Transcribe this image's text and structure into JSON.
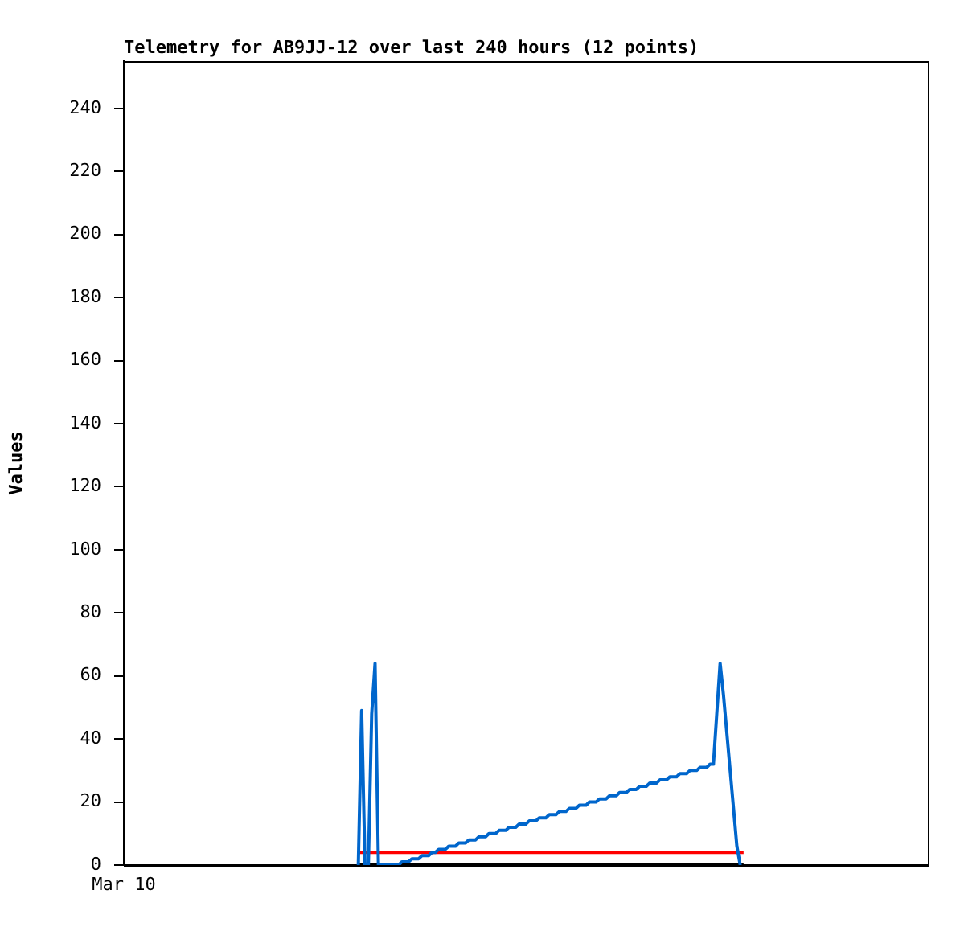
{
  "chart_data": {
    "type": "line",
    "title": "Telemetry for AB9JJ-12 over last 240 hours (12 points)",
    "ylabel": "Values",
    "categories": [
      "Mar 10",
      null,
      null,
      null,
      null,
      null,
      null,
      null,
      null,
      null,
      null,
      null,
      null,
      null,
      null,
      null,
      null,
      null,
      null,
      null,
      null,
      null,
      null,
      null,
      null,
      null,
      null,
      null,
      null,
      null,
      null,
      null,
      null,
      null,
      null,
      null,
      null,
      null,
      null,
      null,
      null,
      null,
      null,
      null,
      null,
      null,
      null,
      null,
      null,
      null,
      null,
      null,
      null,
      null,
      null,
      null,
      null,
      null,
      null,
      null,
      null,
      null,
      null,
      null,
      null,
      null,
      null,
      null,
      null,
      null,
      null,
      null,
      null,
      null,
      null,
      null,
      null,
      null,
      null,
      null,
      null,
      null,
      null,
      null,
      null,
      null,
      null,
      null,
      null,
      null,
      null,
      null,
      null,
      null,
      null,
      null,
      null,
      null,
      null,
      null,
      null,
      null,
      null,
      null,
      null,
      null,
      null,
      null,
      null,
      null,
      null,
      null,
      null,
      null,
      null,
      null,
      null,
      null,
      null,
      null,
      null,
      null,
      null,
      null,
      null,
      null,
      null,
      null,
      null,
      null,
      null,
      null,
      null,
      null,
      null,
      null,
      null,
      null,
      null,
      null,
      null,
      null,
      null,
      null,
      null,
      null,
      null,
      null,
      null,
      null,
      null,
      null,
      null,
      null,
      null,
      null,
      null,
      null,
      null,
      null,
      null,
      null,
      null,
      null,
      null,
      null,
      null,
      null,
      null,
      null,
      null,
      null,
      null,
      null,
      null,
      null,
      null,
      null,
      null,
      null,
      null,
      null,
      null,
      null,
      null,
      null,
      null,
      null,
      null,
      null,
      null,
      null,
      null,
      null,
      null,
      null,
      null,
      null,
      null,
      null,
      null,
      null,
      null,
      null,
      null,
      null,
      null,
      null,
      null,
      null,
      null,
      null,
      null,
      null,
      null,
      null,
      null,
      null,
      null,
      null,
      null,
      null,
      null,
      null,
      null,
      null,
      null,
      null,
      null,
      null,
      null,
      null,
      null,
      null,
      null,
      null,
      null,
      null,
      null,
      null,
      null
    ],
    "ylim": [
      0,
      255
    ],
    "yticks": [
      0,
      20,
      40,
      60,
      80,
      100,
      120,
      140,
      160,
      180,
      200,
      220,
      240
    ],
    "grid": false,
    "legend": false,
    "marker": "none",
    "line_style": "solid",
    "series": [
      {
        "color": "#0066cc",
        "values": [
          null,
          null,
          null,
          null,
          null,
          null,
          null,
          null,
          null,
          null,
          null,
          null,
          null,
          null,
          null,
          null,
          null,
          null,
          null,
          null,
          null,
          null,
          null,
          null,
          null,
          null,
          null,
          null,
          null,
          null,
          null,
          null,
          null,
          null,
          null,
          null,
          null,
          null,
          null,
          null,
          null,
          null,
          null,
          null,
          null,
          null,
          null,
          null,
          null,
          null,
          null,
          null,
          null,
          null,
          null,
          null,
          null,
          null,
          null,
          null,
          null,
          null,
          null,
          null,
          null,
          null,
          null,
          null,
          null,
          null,
          0,
          49,
          0,
          0,
          48,
          64,
          0,
          0,
          0,
          0,
          0,
          0,
          0,
          1,
          1,
          1,
          2,
          2,
          2,
          3,
          3,
          3,
          4,
          4,
          5,
          5,
          5,
          6,
          6,
          6,
          7,
          7,
          7,
          8,
          8,
          8,
          9,
          9,
          9,
          10,
          10,
          10,
          11,
          11,
          11,
          12,
          12,
          12,
          13,
          13,
          13,
          14,
          14,
          14,
          15,
          15,
          15,
          16,
          16,
          16,
          17,
          17,
          17,
          18,
          18,
          18,
          19,
          19,
          19,
          20,
          20,
          20,
          21,
          21,
          21,
          22,
          22,
          22,
          23,
          23,
          23,
          24,
          24,
          24,
          25,
          25,
          25,
          26,
          26,
          26,
          27,
          27,
          27,
          28,
          28,
          28,
          29,
          29,
          29,
          30,
          30,
          30,
          31,
          31,
          31,
          32,
          32,
          48,
          64,
          54,
          42,
          30,
          18,
          6,
          0,
          null,
          null,
          null,
          null,
          null,
          null,
          null,
          null,
          null,
          null,
          null,
          null,
          null,
          null,
          null,
          null,
          null,
          null,
          null,
          null,
          null,
          null,
          null,
          null,
          null,
          null,
          null,
          null,
          null,
          null,
          null,
          null,
          null,
          null,
          null,
          null,
          null,
          null,
          null,
          null,
          null,
          null,
          null,
          null,
          null,
          null,
          null,
          null,
          null,
          null,
          null,
          null,
          null,
          null,
          null,
          null
        ]
      },
      {
        "color": "#ff0000",
        "values": [
          null,
          null,
          null,
          null,
          null,
          null,
          null,
          null,
          null,
          null,
          null,
          null,
          null,
          null,
          null,
          null,
          null,
          null,
          null,
          null,
          null,
          null,
          null,
          null,
          null,
          null,
          null,
          null,
          null,
          null,
          null,
          null,
          null,
          null,
          null,
          null,
          null,
          null,
          null,
          null,
          null,
          null,
          null,
          null,
          null,
          null,
          null,
          null,
          null,
          null,
          null,
          null,
          null,
          null,
          null,
          null,
          null,
          null,
          null,
          null,
          null,
          null,
          null,
          null,
          null,
          null,
          null,
          null,
          null,
          null,
          4,
          4,
          4,
          4,
          4,
          4,
          4,
          4,
          4,
          4,
          4,
          4,
          4,
          4,
          4,
          4,
          4,
          4,
          4,
          4,
          4,
          4,
          4,
          4,
          4,
          4,
          4,
          4,
          4,
          4,
          4,
          4,
          4,
          4,
          4,
          4,
          4,
          4,
          4,
          4,
          4,
          4,
          4,
          4,
          4,
          4,
          4,
          4,
          4,
          4,
          4,
          4,
          4,
          4,
          4,
          4,
          4,
          4,
          4,
          4,
          4,
          4,
          4,
          4,
          4,
          4,
          4,
          4,
          4,
          4,
          4,
          4,
          4,
          4,
          4,
          4,
          4,
          4,
          4,
          4,
          4,
          4,
          4,
          4,
          4,
          4,
          4,
          4,
          4,
          4,
          4,
          4,
          4,
          4,
          4,
          4,
          4,
          4,
          4,
          4,
          4,
          4,
          4,
          4,
          4,
          4,
          4,
          4,
          4,
          4,
          4,
          4,
          4,
          4,
          4,
          4,
          null,
          null,
          null,
          null,
          null,
          null,
          null,
          null,
          null,
          null,
          null,
          null,
          null,
          null,
          null,
          null,
          null,
          null,
          null,
          null,
          null,
          null,
          null,
          null,
          null,
          null,
          null,
          null,
          null,
          null,
          null,
          null,
          null,
          null,
          null,
          null,
          null,
          null,
          null,
          null,
          null,
          null,
          null,
          null,
          null,
          null,
          null,
          null,
          null,
          null,
          null,
          null,
          null,
          null,
          null
        ]
      },
      {
        "color": "#000000",
        "values": [
          null,
          null,
          null,
          null,
          null,
          null,
          null,
          null,
          null,
          null,
          null,
          null,
          null,
          null,
          null,
          null,
          null,
          null,
          null,
          null,
          null,
          null,
          null,
          null,
          null,
          null,
          null,
          null,
          null,
          null,
          null,
          null,
          null,
          null,
          null,
          null,
          null,
          null,
          null,
          null,
          null,
          null,
          null,
          null,
          null,
          null,
          null,
          null,
          null,
          null,
          null,
          null,
          null,
          null,
          null,
          null,
          null,
          null,
          null,
          null,
          null,
          null,
          null,
          null,
          null,
          null,
          null,
          null,
          null,
          null,
          0,
          0,
          0,
          0,
          0,
          0,
          0,
          0,
          0,
          0,
          0,
          0,
          0,
          0,
          0,
          0,
          0,
          0,
          0,
          0,
          0,
          0,
          0,
          0,
          0,
          0,
          0,
          0,
          0,
          0,
          0,
          0,
          0,
          0,
          0,
          0,
          0,
          0,
          0,
          0,
          0,
          0,
          0,
          0,
          0,
          0,
          0,
          0,
          0,
          0,
          0,
          0,
          0,
          0,
          0,
          0,
          0,
          0,
          0,
          0,
          0,
          0,
          0,
          0,
          0,
          0,
          0,
          0,
          0,
          0,
          0,
          0,
          0,
          0,
          0,
          0,
          0,
          0,
          0,
          0,
          0,
          0,
          0,
          0,
          0,
          0,
          0,
          0,
          0,
          0,
          0,
          0,
          0,
          0,
          0,
          0,
          0,
          0,
          0,
          0,
          0,
          0,
          0,
          0,
          0,
          0,
          0,
          0,
          0,
          0,
          0,
          0,
          0,
          0,
          0,
          0,
          null,
          null,
          null,
          null,
          null,
          null,
          null,
          null,
          null,
          null,
          null,
          null,
          null,
          null,
          null,
          null,
          null,
          null,
          null,
          null,
          null,
          null,
          null,
          null,
          null,
          null,
          null,
          null,
          null,
          null,
          null,
          null,
          null,
          null,
          null,
          null,
          null,
          null,
          null,
          null,
          null,
          null,
          null,
          null,
          null,
          null,
          null,
          null,
          null,
          null,
          null,
          null,
          null,
          null,
          null
        ]
      }
    ]
  }
}
